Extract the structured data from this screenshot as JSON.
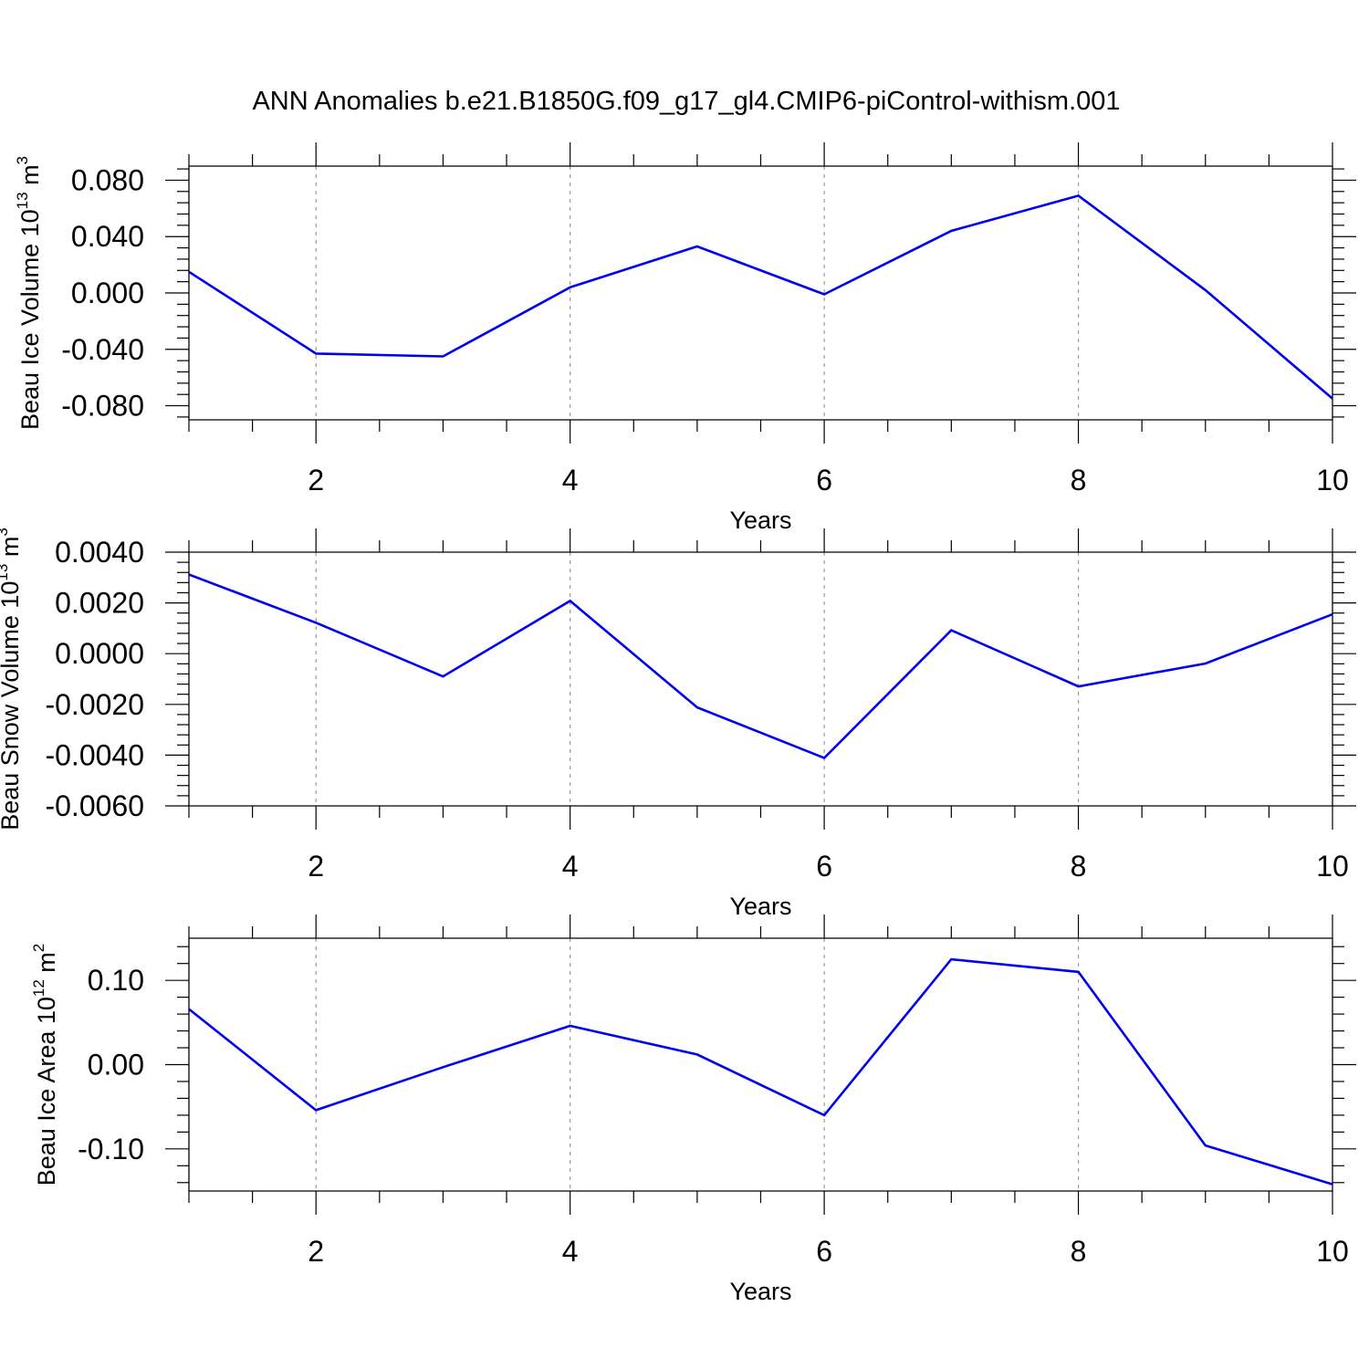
{
  "title": "ANN Anomalies b.e21.B1850G.f09_g17_gl4.CMIP6-piControl-withism.001",
  "chart_data": [
    {
      "type": "line",
      "ylabel": "Beau Ice Volume 10",
      "ylabel_exp": "13",
      "ylabel_unit": " m",
      "ylabel_unit_exp": "3",
      "xlabel": "Years",
      "xlim": [
        1,
        10
      ],
      "ylim": [
        -0.09,
        0.09
      ],
      "yticks": [
        -0.08,
        -0.04,
        0.0,
        0.04,
        0.08
      ],
      "ytick_labels": [
        "-0.080",
        "-0.040",
        "0.000",
        "0.040",
        "0.080"
      ],
      "xticks": [
        2,
        4,
        6,
        8,
        10
      ],
      "xtick_labels": [
        "2",
        "4",
        "6",
        "8",
        "10"
      ],
      "line_color": "#0000ee",
      "x": [
        1,
        2,
        3,
        4,
        5,
        6,
        7,
        8,
        9,
        10
      ],
      "values": [
        0.015,
        -0.043,
        -0.045,
        0.004,
        0.033,
        -0.001,
        0.044,
        0.069,
        0.002,
        -0.075
      ]
    },
    {
      "type": "line",
      "ylabel": "Beau Snow Volume 10",
      "ylabel_exp": "13",
      "ylabel_unit": " m",
      "ylabel_unit_exp": "3",
      "xlabel": "Years",
      "xlim": [
        1,
        10
      ],
      "ylim": [
        -0.006,
        0.004
      ],
      "yticks": [
        -0.006,
        -0.004,
        -0.002,
        0.0,
        0.002,
        0.004
      ],
      "ytick_labels": [
        "-0.0060",
        "-0.0040",
        "-0.0020",
        "0.0000",
        "0.0020",
        "0.0040"
      ],
      "xticks": [
        2,
        4,
        6,
        8,
        10
      ],
      "xtick_labels": [
        "2",
        "4",
        "6",
        "8",
        "10"
      ],
      "line_color": "#0000ee",
      "x": [
        1,
        2,
        3,
        4,
        5,
        6,
        7,
        8,
        9,
        10
      ],
      "values": [
        0.00312,
        0.00122,
        -0.0009,
        0.00208,
        -0.00212,
        -0.00411,
        0.00092,
        -0.00129,
        -0.00039,
        0.00155
      ]
    },
    {
      "type": "line",
      "ylabel": "Beau Ice Area 10",
      "ylabel_exp": "12",
      "ylabel_unit": " m",
      "ylabel_unit_exp": "2",
      "xlabel": "Years",
      "xlim": [
        1,
        10
      ],
      "ylim": [
        -0.15,
        0.15
      ],
      "yticks": [
        -0.1,
        0.0,
        0.1
      ],
      "ytick_labels": [
        "-0.10",
        "0.00",
        "0.10"
      ],
      "xticks": [
        2,
        4,
        6,
        8,
        10
      ],
      "xtick_labels": [
        "2",
        "4",
        "6",
        "8",
        "10"
      ],
      "line_color": "#0000ee",
      "x": [
        1,
        2,
        3,
        4,
        5,
        6,
        7,
        8,
        9,
        10
      ],
      "values": [
        0.066,
        -0.054,
        -0.003,
        0.046,
        0.012,
        -0.06,
        0.125,
        0.11,
        -0.096,
        -0.142
      ]
    }
  ]
}
